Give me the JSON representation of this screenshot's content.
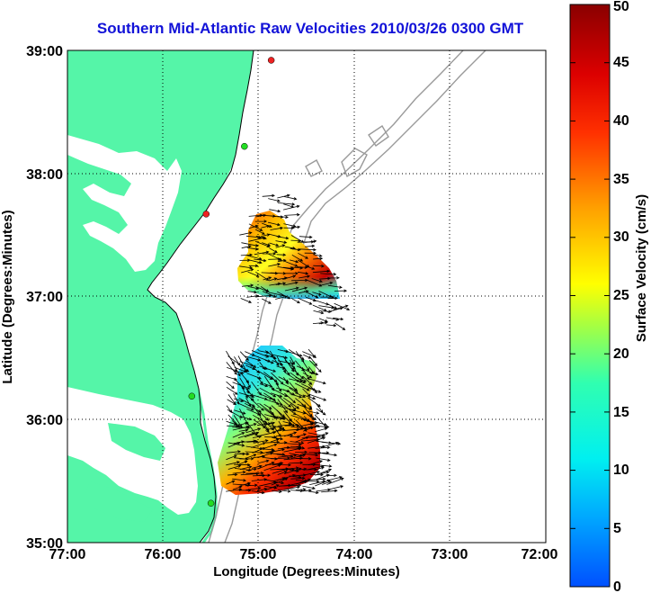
{
  "title": "Southern Mid-Atlantic Raw Velocities 2010/03/26 0300 GMT",
  "xlabel": "Longitude (Degrees:Minutes)",
  "ylabel": "Latitude (Degrees:Minutes)",
  "x_ticks": [
    "77:00",
    "76:00",
    "75:00",
    "74:00",
    "73:00",
    "72:00"
  ],
  "y_ticks": [
    "39:00",
    "38:00",
    "37:00",
    "36:00",
    "35:00"
  ],
  "colorbar": {
    "label": "Surface Velocity (cm/s)",
    "ticks": [
      "0",
      "5",
      "10",
      "15",
      "20",
      "25",
      "30",
      "35",
      "40",
      "45",
      "50"
    ],
    "range": [
      0,
      50
    ]
  },
  "colors": {
    "land": "#55f5a8",
    "title": "#1212d8",
    "bathymetry": "#9a9a9a",
    "station_active": "#22dd22",
    "station_inactive": "#ee2222"
  },
  "stations": [
    {
      "lon": 74.87,
      "lat": 38.92,
      "status": "inactive"
    },
    {
      "lon": 75.15,
      "lat": 38.22,
      "status": "active"
    },
    {
      "lon": 75.55,
      "lat": 37.67,
      "status": "inactive"
    },
    {
      "lon": 75.7,
      "lat": 36.19,
      "status": "active"
    },
    {
      "lon": 75.5,
      "lat": 35.32,
      "status": "active"
    }
  ]
}
